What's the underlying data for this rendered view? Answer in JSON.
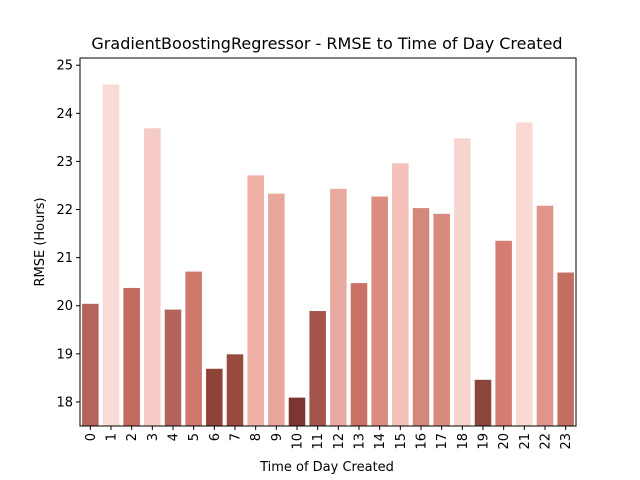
{
  "chart_data": {
    "type": "bar",
    "title": "GradientBoostingRegressor - RMSE to Time of Day Created",
    "xlabel": "Time of Day Created",
    "ylabel": "RMSE (Hours)",
    "ylim": [
      17.5,
      25.15
    ],
    "yticks": [
      18,
      19,
      20,
      21,
      22,
      23,
      24,
      25
    ],
    "categories": [
      "0",
      "1",
      "2",
      "3",
      "4",
      "5",
      "6",
      "7",
      "8",
      "9",
      "10",
      "11",
      "12",
      "13",
      "14",
      "15",
      "16",
      "17",
      "18",
      "19",
      "20",
      "21",
      "22",
      "23"
    ],
    "values": [
      20.04,
      24.6,
      20.37,
      23.69,
      19.92,
      20.71,
      18.69,
      18.99,
      22.71,
      22.33,
      18.09,
      19.89,
      22.43,
      20.47,
      22.27,
      22.96,
      22.03,
      21.91,
      23.48,
      18.46,
      21.35,
      23.81,
      22.08,
      20.69
    ],
    "colors": [
      "#b66359",
      "#f9dad6",
      "#c36b60",
      "#f7cbc5",
      "#b3645a",
      "#d0786d",
      "#8f4238",
      "#994a3f",
      "#f0b0a6",
      "#e8a79d",
      "#7d352f",
      "#a4544a",
      "#e9aba1",
      "#ca7165",
      "#dd8c81",
      "#f4c1b9",
      "#d4877b",
      "#d88a7f",
      "#f8d4cf",
      "#8a463b",
      "#d47e72",
      "#fad8d3",
      "#df9589",
      "#c46e61"
    ],
    "grid": false,
    "legend": "none"
  }
}
